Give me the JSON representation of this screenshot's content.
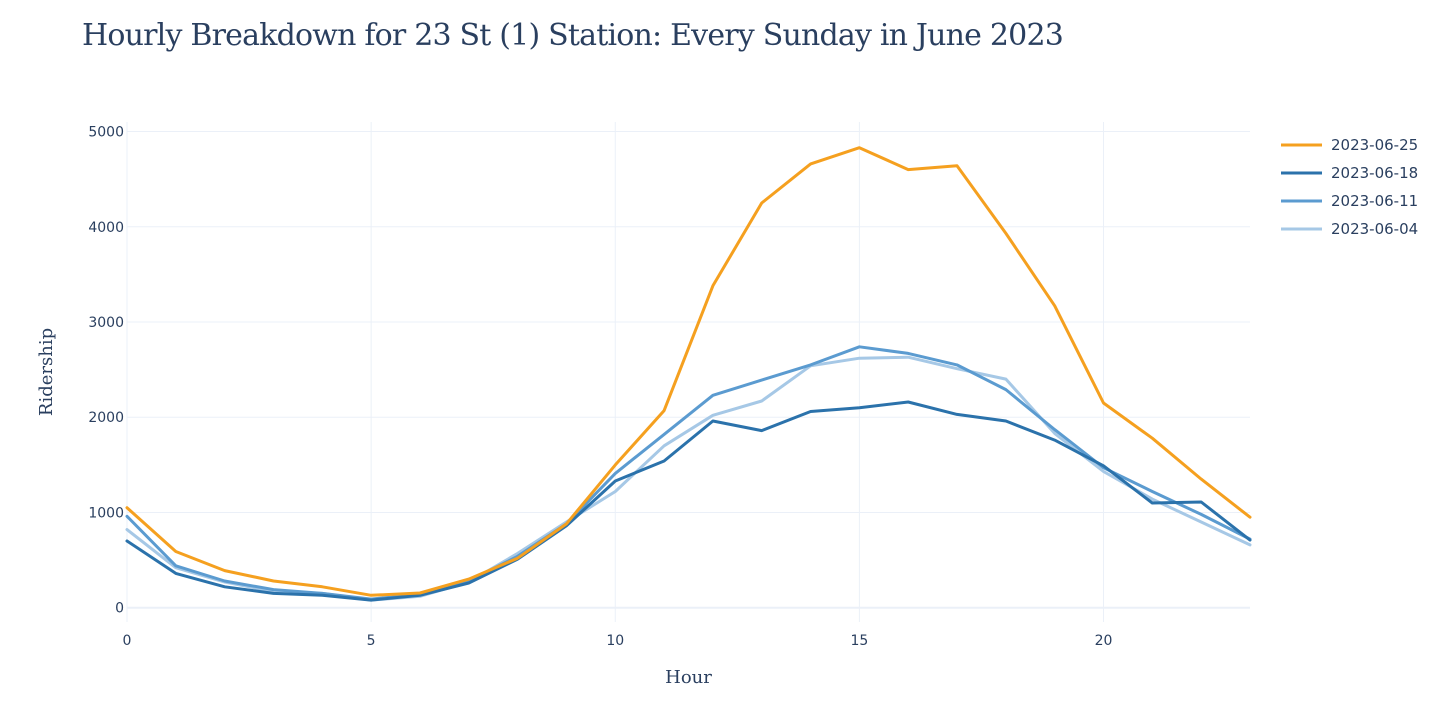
{
  "chart_data": {
    "type": "line",
    "title": "Hourly Breakdown for 23 St (1) Station: Every Sunday in June 2023",
    "xlabel": "Hour",
    "ylabel": "Ridership",
    "xlim": [
      0,
      23
    ],
    "ylim": [
      -150,
      5100
    ],
    "xticks": [
      0,
      5,
      10,
      15,
      20
    ],
    "yticks": [
      0,
      1000,
      2000,
      3000,
      4000,
      5000
    ],
    "grid": true,
    "legend_position": "top-right",
    "x": [
      0,
      1,
      2,
      3,
      4,
      5,
      6,
      7,
      8,
      9,
      10,
      11,
      12,
      13,
      14,
      15,
      16,
      17,
      18,
      19,
      20,
      21,
      22,
      23
    ],
    "series": [
      {
        "name": "2023-06-25",
        "color": "#f5a01f",
        "values": [
          1050,
          590,
          390,
          280,
          220,
          130,
          155,
          300,
          520,
          880,
          1500,
          2070,
          3380,
          4250,
          4660,
          4830,
          4600,
          4640,
          3930,
          3170,
          2150,
          1780,
          1350,
          950
        ]
      },
      {
        "name": "2023-06-18",
        "color": "#2b72ab",
        "values": [
          700,
          360,
          220,
          150,
          130,
          80,
          130,
          260,
          510,
          860,
          1330,
          1540,
          1960,
          1860,
          2060,
          2100,
          2160,
          2030,
          1960,
          1760,
          1490,
          1100,
          1110,
          710
        ]
      },
      {
        "name": "2023-06-11",
        "color": "#5b9bd0",
        "values": [
          960,
          440,
          280,
          190,
          150,
          90,
          140,
          280,
          540,
          880,
          1410,
          1820,
          2230,
          2390,
          2550,
          2740,
          2670,
          2550,
          2290,
          1870,
          1470,
          1220,
          980,
          720
        ]
      },
      {
        "name": "2023-06-04",
        "color": "#a6c8e6",
        "values": [
          820,
          420,
          270,
          170,
          150,
          80,
          120,
          270,
          570,
          900,
          1220,
          1700,
          2020,
          2170,
          2540,
          2620,
          2630,
          2510,
          2400,
          1830,
          1430,
          1140,
          900,
          660
        ]
      }
    ]
  }
}
